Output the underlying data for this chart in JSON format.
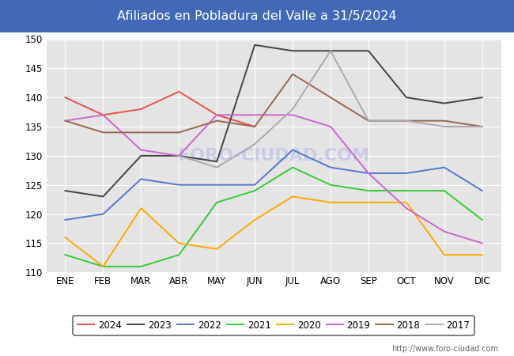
{
  "title": "Afiliados en Pobladura del Valle a 31/5/2024",
  "title_bg_color": "#4169b8",
  "title_text_color": "white",
  "ylim": [
    110,
    150
  ],
  "yticks": [
    110,
    115,
    120,
    125,
    130,
    135,
    140,
    145,
    150
  ],
  "months": [
    "ENE",
    "FEB",
    "MAR",
    "ABR",
    "MAY",
    "JUN",
    "JUL",
    "AGO",
    "SEP",
    "OCT",
    "NOV",
    "DIC"
  ],
  "watermark": "FORO-CIUDAD.COM",
  "url": "http://www.foro-ciudad.com",
  "series": {
    "2024": {
      "color": "#e8534a",
      "data": [
        140,
        137,
        138,
        141,
        137,
        135,
        null,
        null,
        null,
        null,
        null,
        null
      ]
    },
    "2023": {
      "color": "#444444",
      "data": [
        124,
        123,
        130,
        130,
        129,
        149,
        148,
        148,
        148,
        140,
        139,
        140
      ]
    },
    "2022": {
      "color": "#5577cc",
      "data": [
        119,
        120,
        126,
        125,
        125,
        125,
        131,
        128,
        127,
        127,
        128,
        124
      ]
    },
    "2021": {
      "color": "#33cc33",
      "data": [
        113,
        111,
        111,
        113,
        122,
        124,
        128,
        125,
        124,
        124,
        124,
        119
      ]
    },
    "2020": {
      "color": "#ffaa00",
      "data": [
        116,
        111,
        121,
        115,
        114,
        119,
        123,
        122,
        122,
        122,
        113,
        113
      ]
    },
    "2019": {
      "color": "#cc66cc",
      "data": [
        136,
        137,
        131,
        130,
        137,
        137,
        137,
        135,
        127,
        121,
        117,
        115
      ]
    },
    "2018": {
      "color": "#996655",
      "data": [
        136,
        134,
        134,
        134,
        136,
        135,
        144,
        140,
        136,
        136,
        136,
        135
      ]
    },
    "2017": {
      "color": "#aaaaaa",
      "data": [
        null,
        null,
        null,
        130,
        128,
        132,
        138,
        148,
        136,
        136,
        135,
        135
      ]
    }
  },
  "legend_order": [
    "2024",
    "2023",
    "2022",
    "2021",
    "2020",
    "2019",
    "2018",
    "2017"
  ],
  "bg_color": "#ffffff",
  "plot_bg_color": "#e4e4e4",
  "grid_color": "#ffffff"
}
